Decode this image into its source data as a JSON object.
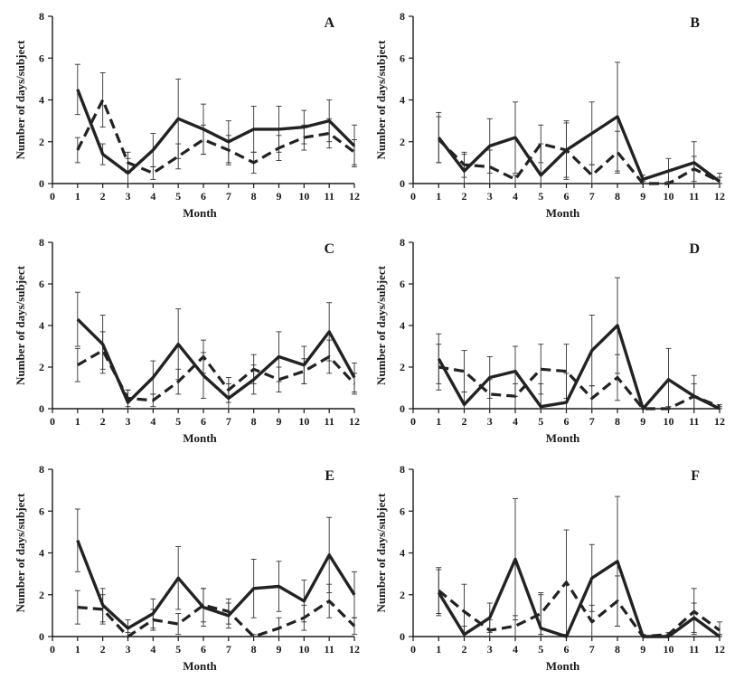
{
  "chart_data": [
    {
      "type": "line",
      "panel": "A",
      "xlabel": "Month",
      "ylabel": "Number of days/subject",
      "xlim": [
        0,
        12
      ],
      "ylim": [
        0,
        8
      ],
      "x_ticks": [
        0,
        1,
        2,
        3,
        4,
        5,
        6,
        7,
        8,
        9,
        10,
        11,
        12
      ],
      "y_ticks": [
        0,
        2,
        4,
        6,
        8
      ],
      "x": [
        1,
        2,
        3,
        4,
        5,
        6,
        7,
        8,
        9,
        10,
        11,
        12
      ],
      "series": [
        {
          "style": "solid",
          "values": [
            4.5,
            1.4,
            0.5,
            1.6,
            3.1,
            2.6,
            2.0,
            2.6,
            2.6,
            2.7,
            3.0,
            1.8
          ],
          "errors": [
            1.2,
            0.5,
            0.7,
            0.8,
            1.9,
            1.2,
            1.0,
            1.1,
            1.1,
            0.8,
            1.0,
            1.0
          ]
        },
        {
          "style": "dashed",
          "values": [
            1.6,
            4.0,
            1.0,
            0.5,
            1.3,
            2.1,
            1.6,
            1.0,
            1.7,
            2.2,
            2.4,
            1.5
          ],
          "errors": [
            0.6,
            1.3,
            0.5,
            0.3,
            0.6,
            0.7,
            0.7,
            0.5,
            0.6,
            0.6,
            0.7,
            0.6
          ]
        }
      ]
    },
    {
      "type": "line",
      "panel": "B",
      "xlabel": "Month",
      "ylabel": "Number of days/subject",
      "xlim": [
        0,
        12
      ],
      "ylim": [
        0,
        8
      ],
      "x_ticks": [
        0,
        1,
        2,
        3,
        4,
        5,
        6,
        7,
        8,
        9,
        10,
        11,
        12
      ],
      "y_ticks": [
        0,
        2,
        4,
        6,
        8
      ],
      "x": [
        1,
        2,
        3,
        4,
        5,
        6,
        7,
        8,
        9,
        10,
        11,
        12
      ],
      "series": [
        {
          "style": "solid",
          "values": [
            2.2,
            0.6,
            1.8,
            2.2,
            0.4,
            1.6,
            2.4,
            3.2,
            0.2,
            0.6,
            1.0,
            0.1
          ],
          "errors": [
            1.2,
            0.8,
            1.3,
            1.7,
            1.5,
            1.4,
            1.5,
            2.6,
            0.2,
            0.6,
            1.0,
            0.4
          ]
        },
        {
          "style": "dashed",
          "values": [
            2.1,
            0.9,
            0.8,
            0.2,
            1.9,
            1.6,
            0.4,
            1.5,
            0.0,
            0.0,
            0.7,
            0.1
          ],
          "errors": [
            1.1,
            0.6,
            0.8,
            0.2,
            0.9,
            1.3,
            0.5,
            1.0,
            0.1,
            0.1,
            0.6,
            0.2
          ]
        }
      ]
    },
    {
      "type": "line",
      "panel": "C",
      "xlabel": "Month",
      "ylabel": "Number of days/subject",
      "xlim": [
        0,
        12
      ],
      "ylim": [
        0,
        8
      ],
      "x_ticks": [
        0,
        1,
        2,
        3,
        4,
        5,
        6,
        7,
        8,
        9,
        10,
        11,
        12
      ],
      "y_ticks": [
        0,
        2,
        4,
        6,
        8
      ],
      "x": [
        1,
        2,
        3,
        4,
        5,
        6,
        7,
        8,
        9,
        10,
        11,
        12
      ],
      "series": [
        {
          "style": "solid",
          "values": [
            4.3,
            3.1,
            0.3,
            1.5,
            3.1,
            1.6,
            0.5,
            1.4,
            2.5,
            2.1,
            3.7,
            1.5
          ],
          "errors": [
            1.3,
            1.4,
            0.6,
            0.8,
            1.7,
            1.1,
            0.7,
            0.7,
            1.2,
            0.9,
            1.4,
            0.7
          ]
        },
        {
          "style": "dashed",
          "values": [
            2.1,
            2.8,
            0.5,
            0.4,
            1.3,
            2.5,
            0.9,
            1.9,
            1.4,
            1.8,
            2.5,
            1.2
          ],
          "errors": [
            0.8,
            0.9,
            0.4,
            0.3,
            0.6,
            0.8,
            0.6,
            0.7,
            0.6,
            0.6,
            0.8,
            0.5
          ]
        }
      ]
    },
    {
      "type": "line",
      "panel": "D",
      "xlabel": "Month",
      "ylabel": "Number of days/subject",
      "xlim": [
        0,
        12
      ],
      "ylim": [
        0,
        8
      ],
      "x_ticks": [
        0,
        1,
        2,
        3,
        4,
        5,
        6,
        7,
        8,
        9,
        10,
        11,
        12
      ],
      "y_ticks": [
        0,
        2,
        4,
        6,
        8
      ],
      "x": [
        1,
        2,
        3,
        4,
        5,
        6,
        7,
        8,
        9,
        10,
        11,
        12
      ],
      "series": [
        {
          "style": "solid",
          "values": [
            2.4,
            0.2,
            1.5,
            1.8,
            0.1,
            0.3,
            2.8,
            4.0,
            0.0,
            1.4,
            0.6,
            0.0
          ],
          "errors": [
            1.2,
            0.6,
            1.0,
            1.2,
            1.1,
            1.4,
            1.7,
            2.3,
            0.1,
            1.5,
            1.0,
            0.1
          ]
        },
        {
          "style": "dashed",
          "values": [
            2.0,
            1.8,
            0.7,
            0.6,
            1.9,
            1.8,
            0.5,
            1.5,
            0.0,
            0.0,
            0.6,
            0.1
          ],
          "errors": [
            1.1,
            1.0,
            0.7,
            0.6,
            1.2,
            1.3,
            0.6,
            1.1,
            0.1,
            0.1,
            0.6,
            0.1
          ]
        }
      ]
    },
    {
      "type": "line",
      "panel": "E",
      "xlabel": "Month",
      "ylabel": "Number of days/subject",
      "xlim": [
        0,
        12
      ],
      "ylim": [
        0,
        8
      ],
      "x_ticks": [
        0,
        1,
        2,
        3,
        4,
        5,
        6,
        7,
        8,
        9,
        10,
        11,
        12
      ],
      "y_ticks": [
        0,
        2,
        4,
        6,
        8
      ],
      "x": [
        1,
        2,
        3,
        4,
        5,
        6,
        7,
        8,
        9,
        10,
        11,
        12
      ],
      "series": [
        {
          "style": "solid",
          "values": [
            4.6,
            1.5,
            0.4,
            1.1,
            2.8,
            1.4,
            1.0,
            2.3,
            2.4,
            1.7,
            3.9,
            2.0
          ],
          "errors": [
            1.5,
            0.8,
            0.4,
            0.7,
            1.5,
            0.9,
            0.6,
            1.4,
            1.2,
            1.0,
            1.8,
            1.1
          ]
        },
        {
          "style": "dashed",
          "values": [
            1.4,
            1.3,
            0.0,
            0.8,
            0.6,
            1.5,
            1.2,
            0.0,
            0.4,
            0.9,
            1.7,
            0.5
          ],
          "errors": [
            0.8,
            0.7,
            0.2,
            0.5,
            0.5,
            0.8,
            0.6,
            0.1,
            0.5,
            0.6,
            0.8,
            0.4
          ]
        }
      ]
    },
    {
      "type": "line",
      "panel": "F",
      "xlabel": "Month",
      "ylabel": "Number of days/subject",
      "xlim": [
        0,
        12
      ],
      "ylim": [
        0,
        8
      ],
      "x_ticks": [
        0,
        1,
        2,
        3,
        4,
        5,
        6,
        7,
        8,
        9,
        10,
        11,
        12
      ],
      "y_ticks": [
        0,
        2,
        4,
        6,
        8
      ],
      "x": [
        1,
        2,
        3,
        4,
        5,
        6,
        7,
        8,
        9,
        10,
        11,
        12
      ],
      "series": [
        {
          "style": "solid",
          "values": [
            2.1,
            0.1,
            0.9,
            3.7,
            0.4,
            0.0,
            2.8,
            3.6,
            0.0,
            0.0,
            0.9,
            0.0
          ],
          "errors": [
            1.1,
            0.4,
            0.7,
            2.9,
            1.6,
            0.1,
            1.6,
            3.1,
            0.1,
            0.1,
            0.7,
            0.1
          ]
        },
        {
          "style": "dashed",
          "values": [
            2.2,
            1.2,
            0.3,
            0.5,
            1.1,
            2.6,
            0.7,
            1.7,
            0.0,
            0.1,
            1.2,
            0.3
          ],
          "errors": [
            1.1,
            1.3,
            0.5,
            0.5,
            1.0,
            2.5,
            0.8,
            1.2,
            0.1,
            0.1,
            1.1,
            0.4
          ]
        }
      ]
    }
  ]
}
